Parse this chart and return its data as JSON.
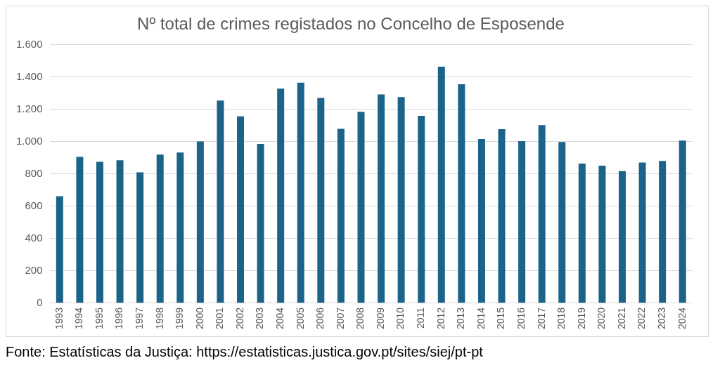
{
  "chart_data": {
    "type": "bar",
    "title": "Nº total de crimes registados no Concelho de Esposende",
    "categories": [
      "1993",
      "1994",
      "1995",
      "1996",
      "1997",
      "1998",
      "1999",
      "2000",
      "2001",
      "2002",
      "2003",
      "2004",
      "2005",
      "2006",
      "2007",
      "2008",
      "2009",
      "2010",
      "2011",
      "2012",
      "2013",
      "2014",
      "2015",
      "2016",
      "2017",
      "2018",
      "2019",
      "2020",
      "2021",
      "2022",
      "2023",
      "2024"
    ],
    "values": [
      662,
      906,
      875,
      885,
      810,
      920,
      933,
      1001,
      1255,
      1157,
      986,
      1328,
      1366,
      1271,
      1080,
      1185,
      1293,
      1276,
      1160,
      1464,
      1356,
      1017,
      1077,
      1004,
      1102,
      998,
      865,
      851,
      818,
      871,
      881,
      1007
    ],
    "color": "#1b6389",
    "ylim": [
      0,
      1600
    ],
    "yticks": [
      {
        "value": 0,
        "label": "0"
      },
      {
        "value": 200,
        "label": "200"
      },
      {
        "value": 400,
        "label": "400"
      },
      {
        "value": 600,
        "label": "600"
      },
      {
        "value": 800,
        "label": "800"
      },
      {
        "value": 1000,
        "label": "1.000"
      },
      {
        "value": 1200,
        "label": "1.200"
      },
      {
        "value": 1400,
        "label": "1.400"
      },
      {
        "value": 1600,
        "label": "1.600"
      }
    ],
    "grid": "y",
    "legend": false,
    "annotations": [
      "Fonte: Estatísticas da Justiça: https://estatisticas.justica.gov.pt/sites/siej/pt-pt"
    ]
  }
}
